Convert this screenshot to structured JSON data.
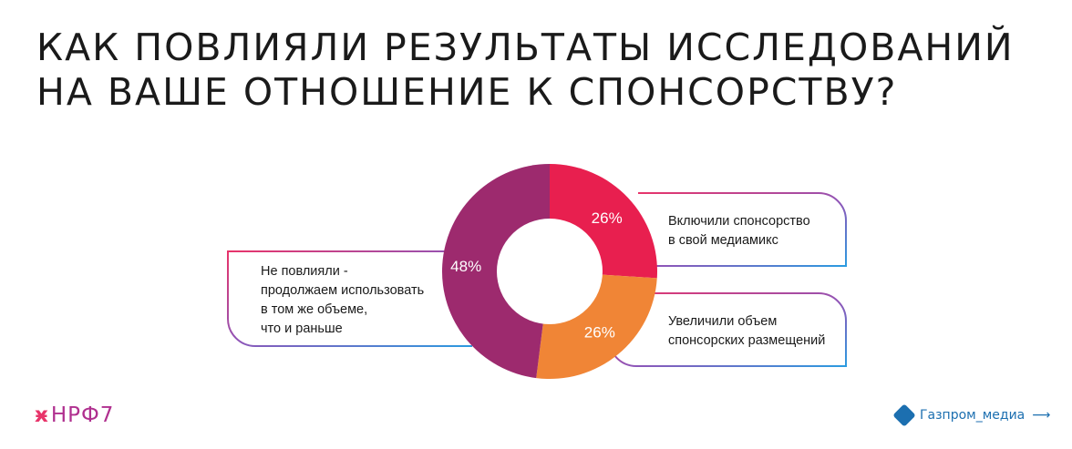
{
  "title": {
    "line1": "КАК ПОВЛИЯЛИ РЕЗУЛЬТАТЫ ИССЛЕДОВАНИЙ",
    "line2": "НА ВАШЕ ОТНОШЕНИЕ К СПОНСОРСТВУ?"
  },
  "chart_data": {
    "type": "pie",
    "variant": "donut",
    "slices": [
      {
        "label": "Включили спонсорство в свой медиамикс",
        "value": 26,
        "value_label": "26%",
        "color": "#e81f4f"
      },
      {
        "label": "Увеличили объем спонсорских размещений",
        "value": 26,
        "value_label": "26%",
        "color": "#f08536"
      },
      {
        "label": "Не повлияли - продолжаем использовать в том же объеме, что и раньше",
        "value": 48,
        "value_label": "48%",
        "color": "#9d2a6e"
      }
    ]
  },
  "callouts": {
    "top_right": [
      "Включили спонсорство",
      "в свой медиамикс"
    ],
    "bottom_right": [
      "Увеличили объем",
      "спонсорских размещений"
    ],
    "left": [
      "Не повлияли -",
      "продолжаем использовать",
      "в том же объеме,",
      "что и раньше"
    ]
  },
  "colors": {
    "gradient_start": "#e8346a",
    "gradient_mid": "#8e55b8",
    "gradient_end": "#2b9be0"
  },
  "logos": {
    "left": {
      "mark": "ӿ",
      "text": "НРФ7"
    },
    "right": {
      "icon": "gazprom-media-diamond-icon",
      "text": "Газпром_медиа"
    }
  }
}
